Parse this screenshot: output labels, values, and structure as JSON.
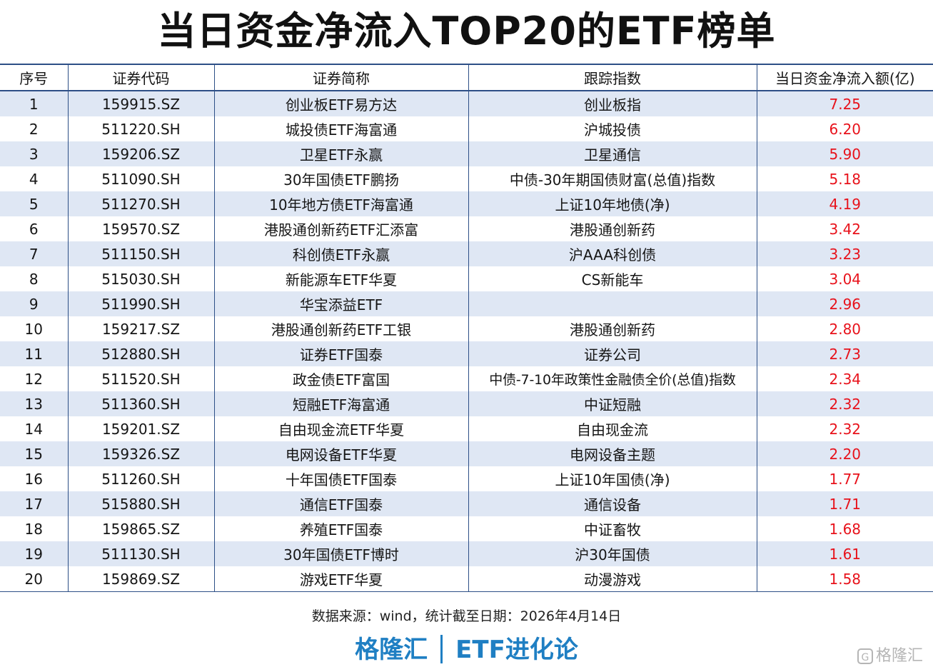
{
  "title": "当日资金净流入TOP20的ETF榜单",
  "table": {
    "headers": [
      "序号",
      "证券代码",
      "证券简称",
      "跟踪指数",
      "当日资金净流入额(亿)"
    ],
    "rows": [
      {
        "rank": "1",
        "code": "159915.SZ",
        "name": "创业板ETF易方达",
        "index": "创业板指",
        "inflow": "7.25"
      },
      {
        "rank": "2",
        "code": "511220.SH",
        "name": "城投债ETF海富通",
        "index": "沪城投债",
        "inflow": "6.20"
      },
      {
        "rank": "3",
        "code": "159206.SZ",
        "name": "卫星ETF永赢",
        "index": "卫星通信",
        "inflow": "5.90"
      },
      {
        "rank": "4",
        "code": "511090.SH",
        "name": "30年国债ETF鹏扬",
        "index": "中债-30年期国债财富(总值)指数",
        "inflow": "5.18"
      },
      {
        "rank": "5",
        "code": "511270.SH",
        "name": "10年地方债ETF海富通",
        "index": "上证10年地债(净)",
        "inflow": "4.19"
      },
      {
        "rank": "6",
        "code": "159570.SZ",
        "name": "港股通创新药ETF汇添富",
        "index": "港股通创新药",
        "inflow": "3.42"
      },
      {
        "rank": "7",
        "code": "511150.SH",
        "name": "科创债ETF永赢",
        "index": "沪AAA科创债",
        "inflow": "3.23"
      },
      {
        "rank": "8",
        "code": "515030.SH",
        "name": "新能源车ETF华夏",
        "index": "CS新能车",
        "inflow": "3.04"
      },
      {
        "rank": "9",
        "code": "511990.SH",
        "name": "华宝添益ETF",
        "index": "",
        "inflow": "2.96"
      },
      {
        "rank": "10",
        "code": "159217.SZ",
        "name": "港股通创新药ETF工银",
        "index": "港股通创新药",
        "inflow": "2.80"
      },
      {
        "rank": "11",
        "code": "512880.SH",
        "name": "证券ETF国泰",
        "index": "证券公司",
        "inflow": "2.73"
      },
      {
        "rank": "12",
        "code": "511520.SH",
        "name": "政金债ETF富国",
        "index": "中债-7-10年政策性金融债全价(总值)指数",
        "inflow": "2.34"
      },
      {
        "rank": "13",
        "code": "511360.SH",
        "name": "短融ETF海富通",
        "index": "中证短融",
        "inflow": "2.32"
      },
      {
        "rank": "14",
        "code": "159201.SZ",
        "name": "自由现金流ETF华夏",
        "index": "自由现金流",
        "inflow": "2.32"
      },
      {
        "rank": "15",
        "code": "159326.SZ",
        "name": "电网设备ETF华夏",
        "index": "电网设备主题",
        "inflow": "2.20"
      },
      {
        "rank": "16",
        "code": "511260.SH",
        "name": "十年国债ETF国泰",
        "index": "上证10年国债(净)",
        "inflow": "1.77"
      },
      {
        "rank": "17",
        "code": "515880.SH",
        "name": "通信ETF国泰",
        "index": "通信设备",
        "inflow": "1.71"
      },
      {
        "rank": "18",
        "code": "159865.SZ",
        "name": "养殖ETF国泰",
        "index": "中证畜牧",
        "inflow": "1.68"
      },
      {
        "rank": "19",
        "code": "511130.SH",
        "name": "30年国债ETF博时",
        "index": "沪30年国债",
        "inflow": "1.61"
      },
      {
        "rank": "20",
        "code": "159869.SZ",
        "name": "游戏ETF华夏",
        "index": "动漫游戏",
        "inflow": "1.58"
      }
    ]
  },
  "source": "数据来源：wind，统计截至日期：2026年4月14日",
  "footer": {
    "brand": "格隆汇",
    "column": "ETF进化论"
  },
  "watermark": {
    "icon": "G",
    "text": "格隆汇"
  },
  "colors": {
    "border": "#2d4f86",
    "stripe": "#dfe7f4",
    "inflow": "#e8121b",
    "footer": "#1f7fc3"
  }
}
